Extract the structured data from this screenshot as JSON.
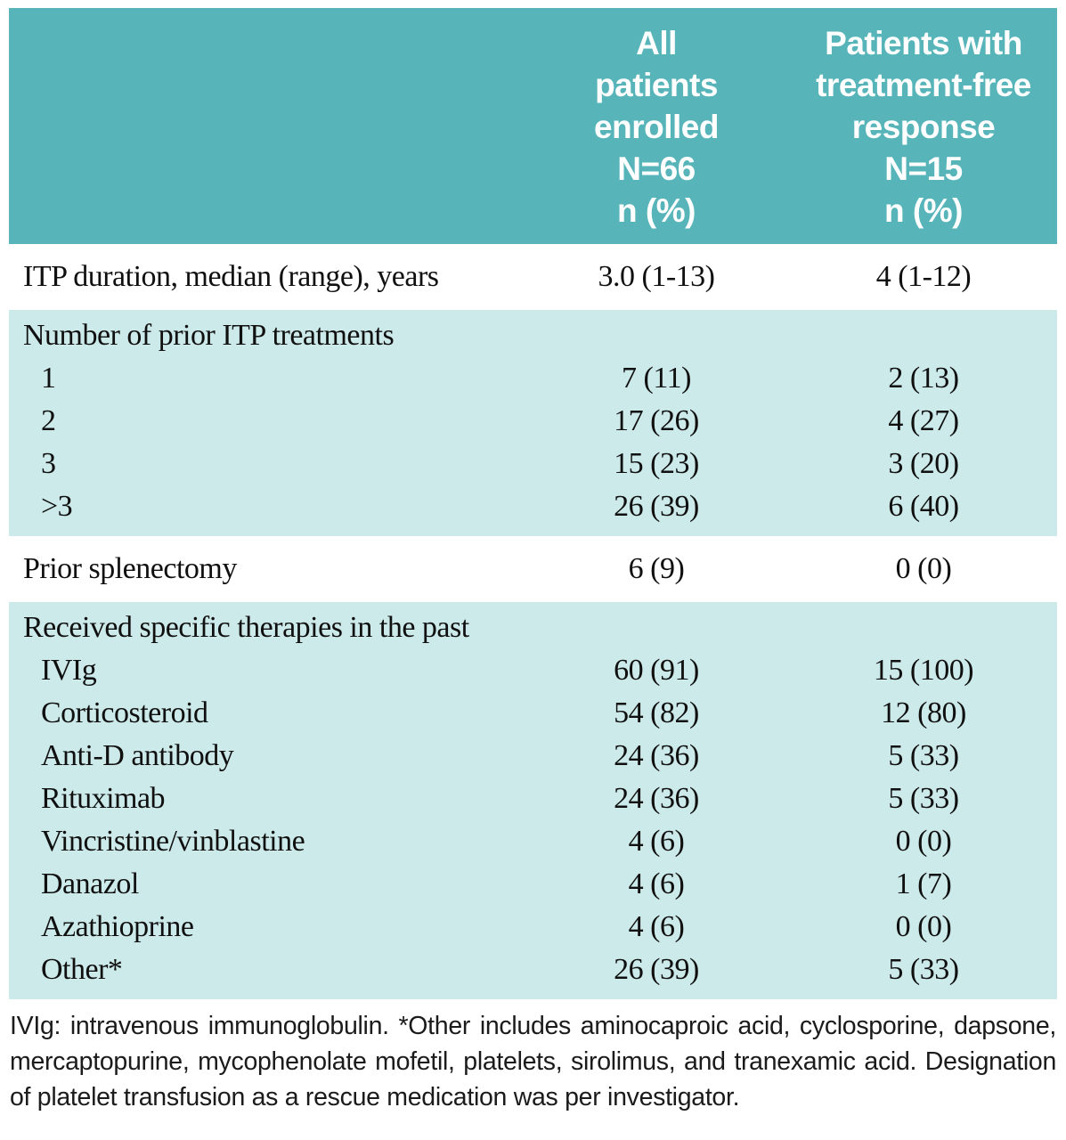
{
  "colors": {
    "header_bg": "#57b5ba",
    "section_bg": "#cdeaea",
    "header_text": "#ffffff",
    "body_text": "#101010"
  },
  "table": {
    "header": {
      "col_all_patients": "All\npatients\nenrolled\nN=66\nn (%)",
      "col_treatment_free": "Patients with\ntreatment-free\nresponse\nN=15\nn (%)"
    },
    "sections": [
      {
        "style": "plain",
        "rows": [
          {
            "label": "ITP duration, median (range), years",
            "all": "3.0 (1-13)",
            "tfr": "4 (1-12)",
            "indent": false,
            "header": false
          }
        ]
      },
      {
        "style": "highlight",
        "rows": [
          {
            "label": "Number of prior ITP treatments",
            "all": "",
            "tfr": "",
            "indent": false,
            "header": true
          },
          {
            "label": "1",
            "all": "7 (11)",
            "tfr": "2 (13)",
            "indent": true,
            "header": false
          },
          {
            "label": "2",
            "all": "17 (26)",
            "tfr": "4 (27)",
            "indent": true,
            "header": false
          },
          {
            "label": "3",
            "all": "15 (23)",
            "tfr": "3 (20)",
            "indent": true,
            "header": false
          },
          {
            "label": ">3",
            "all": "26 (39)",
            "tfr": "6 (40)",
            "indent": true,
            "header": false
          }
        ]
      },
      {
        "style": "plain",
        "rows": [
          {
            "label": "Prior splenectomy",
            "all": "6 (9)",
            "tfr": "0 (0)",
            "indent": false,
            "header": false
          }
        ]
      },
      {
        "style": "highlight",
        "rows": [
          {
            "label": "Received specific therapies in the past",
            "all": "",
            "tfr": "",
            "indent": false,
            "header": true
          },
          {
            "label": "IVIg",
            "all": "60 (91)",
            "tfr": "15 (100)",
            "indent": true,
            "header": false
          },
          {
            "label": "Corticosteroid",
            "all": "54 (82)",
            "tfr": "12 (80)",
            "indent": true,
            "header": false
          },
          {
            "label": "Anti-D antibody",
            "all": "24 (36)",
            "tfr": "5 (33)",
            "indent": true,
            "header": false
          },
          {
            "label": "Rituximab",
            "all": "24 (36)",
            "tfr": "5 (33)",
            "indent": true,
            "header": false
          },
          {
            "label": "Vincristine/vinblastine",
            "all": "4 (6)",
            "tfr": "0 (0)",
            "indent": true,
            "header": false
          },
          {
            "label": "Danazol",
            "all": "4 (6)",
            "tfr": "1 (7)",
            "indent": true,
            "header": false
          },
          {
            "label": "Azathioprine",
            "all": "4 (6)",
            "tfr": "0 (0)",
            "indent": true,
            "header": false
          },
          {
            "label": "Other*",
            "all": "26 (39)",
            "tfr": "5 (33)",
            "indent": true,
            "header": false
          }
        ]
      }
    ]
  },
  "footnote": "IVIg: intravenous immunoglobulin. *Other includes aminocaproic acid, cyclosporine, dapsone, mercaptopurine, mycophenolate mofetil, platelets, sirolimus, and tranexamic acid. Designation of platelet transfusion as a rescue medication was per investigator."
}
